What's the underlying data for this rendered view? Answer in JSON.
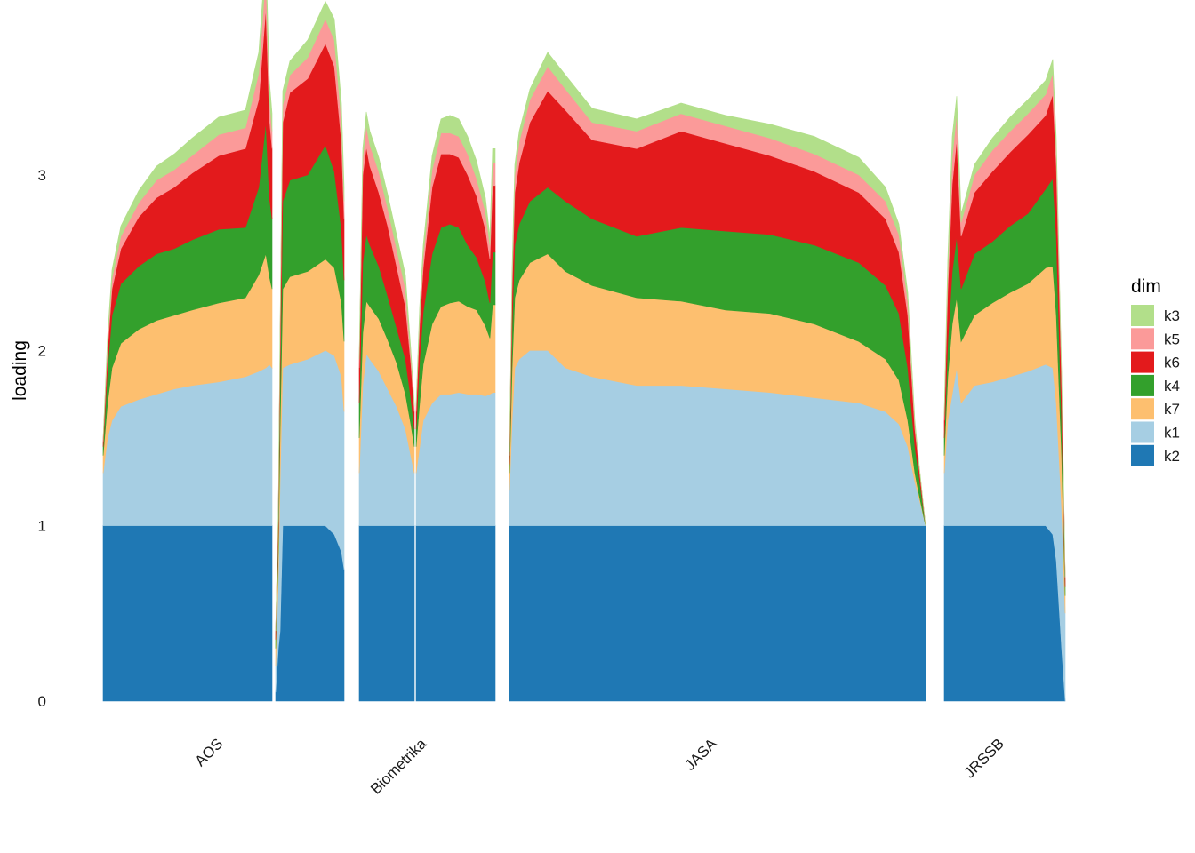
{
  "chart_data": {
    "type": "area",
    "stacked": true,
    "title": "",
    "xlabel": "",
    "ylabel": "loading",
    "ylim": [
      0,
      3.78
    ],
    "yticks": [
      0,
      1,
      2,
      3
    ],
    "grid": false,
    "legend": {
      "title": "dim",
      "placement": "right",
      "order": [
        "k3",
        "k5",
        "k6",
        "k4",
        "k7",
        "k1",
        "k2"
      ]
    },
    "colors": {
      "k2": "#1f78b4",
      "k1": "#a6cee3",
      "k7": "#fdbf6f",
      "k4": "#33a02c",
      "k6": "#e31a1c",
      "k5": "#fb9a99",
      "k3": "#b2df8a"
    },
    "series_order": [
      "k2",
      "k1",
      "k7",
      "k4",
      "k6",
      "k5",
      "k3"
    ],
    "x_domain": [
      0,
      1080
    ],
    "groups": [
      {
        "label": "AOS",
        "segments": [
          {
            "x": [
              0,
              5,
              10,
              20,
              40,
              60,
              80,
              100,
              130,
              160,
              175,
              183,
              187,
              190
            ],
            "series": {
              "k2": [
                1,
                1,
                1,
                1,
                1,
                1,
                1,
                1,
                1,
                1,
                1,
                1,
                1,
                1
              ],
              "k1": [
                0.3,
                0.5,
                0.6,
                0.68,
                0.72,
                0.75,
                0.78,
                0.8,
                0.82,
                0.85,
                0.88,
                0.9,
                0.92,
                0.9
              ],
              "k7": [
                0.1,
                0.2,
                0.3,
                0.36,
                0.4,
                0.42,
                0.42,
                0.43,
                0.45,
                0.45,
                0.55,
                0.65,
                0.5,
                0.45
              ],
              "k4": [
                0.05,
                0.2,
                0.3,
                0.34,
                0.36,
                0.38,
                0.38,
                0.4,
                0.42,
                0.4,
                0.5,
                0.75,
                0.45,
                0.4
              ],
              "k6": [
                0.03,
                0.1,
                0.15,
                0.2,
                0.28,
                0.32,
                0.35,
                0.38,
                0.42,
                0.45,
                0.5,
                0.65,
                0.45,
                0.4
              ],
              "k5": [
                0.01,
                0.05,
                0.06,
                0.07,
                0.08,
                0.1,
                0.1,
                0.1,
                0.12,
                0.12,
                0.15,
                0.2,
                0.12,
                0.1
              ],
              "k3": [
                0.01,
                0.03,
                0.05,
                0.06,
                0.07,
                0.08,
                0.09,
                0.1,
                0.1,
                0.1,
                0.12,
                0.12,
                0.1,
                0.1
              ]
            }
          },
          {
            "x": [
              194,
              197,
              199,
              202,
              210,
              230,
              250,
              260,
              268,
              271
            ],
            "series": {
              "k2": [
                0.05,
                0.3,
                0.4,
                1,
                1,
                1,
                1,
                0.95,
                0.85,
                0.75
              ],
              "k1": [
                0.15,
                0.4,
                0.85,
                0.9,
                0.92,
                0.95,
                1.0,
                1.02,
                1.0,
                0.9
              ],
              "k7": [
                0.1,
                0.15,
                0.3,
                0.45,
                0.5,
                0.5,
                0.52,
                0.5,
                0.42,
                0.4
              ],
              "k4": [
                0.05,
                0.1,
                0.3,
                0.5,
                0.55,
                0.55,
                0.65,
                0.55,
                0.42,
                0.35
              ],
              "k6": [
                0.05,
                0.1,
                0.2,
                0.45,
                0.5,
                0.55,
                0.58,
                0.6,
                0.5,
                0.35
              ],
              "k5": [
                0.0,
                0.02,
                0.05,
                0.1,
                0.1,
                0.12,
                0.14,
                0.15,
                0.12,
                0.1
              ],
              "k3": [
                0.0,
                0.02,
                0.05,
                0.08,
                0.08,
                0.1,
                0.1,
                0.12,
                0.1,
                0.08
              ]
            }
          }
        ]
      },
      {
        "label": "Biometrika",
        "segments": [
          {
            "x": [
              288,
              292,
              296,
              300,
              310,
              320,
              330,
              340,
              346,
              350
            ],
            "series": {
              "k2": [
                1,
                1,
                1,
                1,
                1,
                1,
                1,
                1,
                1,
                1
              ],
              "k1": [
                0.3,
                0.8,
                0.98,
                0.95,
                0.88,
                0.78,
                0.68,
                0.55,
                0.4,
                0.3
              ],
              "k7": [
                0.2,
                0.3,
                0.3,
                0.3,
                0.3,
                0.28,
                0.25,
                0.2,
                0.18,
                0.15
              ],
              "k4": [
                0.2,
                0.4,
                0.38,
                0.35,
                0.3,
                0.25,
                0.2,
                0.2,
                0.15,
                0.1
              ],
              "k6": [
                0.2,
                0.5,
                0.5,
                0.45,
                0.42,
                0.4,
                0.35,
                0.3,
                0.2,
                0.1
              ],
              "k5": [
                0.05,
                0.1,
                0.12,
                0.12,
                0.12,
                0.1,
                0.1,
                0.1,
                0.05,
                0.03
              ],
              "k3": [
                0.03,
                0.05,
                0.08,
                0.08,
                0.08,
                0.08,
                0.08,
                0.08,
                0.03,
                0.02
              ]
            }
          },
          {
            "x": [
              352,
              356,
              360,
              370,
              380,
              390,
              400,
              410,
              420,
              430,
              435,
              438,
              441
            ],
            "series": {
              "k2": [
                1,
                1,
                1,
                1,
                1,
                1,
                1,
                1,
                1,
                1,
                1,
                1,
                1
              ],
              "k1": [
                0.3,
                0.45,
                0.6,
                0.7,
                0.75,
                0.75,
                0.76,
                0.75,
                0.75,
                0.74,
                0.75,
                0.76,
                0.76
              ],
              "k7": [
                0.15,
                0.25,
                0.32,
                0.45,
                0.5,
                0.52,
                0.52,
                0.5,
                0.48,
                0.4,
                0.32,
                0.5,
                0.5
              ],
              "k4": [
                0.1,
                0.25,
                0.3,
                0.4,
                0.45,
                0.45,
                0.42,
                0.35,
                0.3,
                0.25,
                0.2,
                0.3,
                0.3
              ],
              "k6": [
                0.1,
                0.2,
                0.25,
                0.38,
                0.42,
                0.4,
                0.4,
                0.4,
                0.35,
                0.3,
                0.25,
                0.38,
                0.38
              ],
              "k5": [
                0.03,
                0.05,
                0.07,
                0.1,
                0.12,
                0.12,
                0.12,
                0.12,
                0.1,
                0.1,
                0.08,
                0.13,
                0.13
              ],
              "k3": [
                0.02,
                0.05,
                0.06,
                0.08,
                0.08,
                0.1,
                0.1,
                0.1,
                0.1,
                0.08,
                0.05,
                0.08,
                0.08
              ]
            }
          }
        ]
      },
      {
        "label": "JASA",
        "segments": [
          {
            "x": [
              457,
              460,
              463,
              468,
              480,
              500,
              520,
              550,
              600,
              650,
              700,
              750,
              800,
              850,
              880,
              895,
              905,
              913,
              918,
              925
            ],
            "series": {
              "k2": [
                1,
                1,
                1,
                1,
                1,
                1,
                1,
                1,
                1,
                1,
                1,
                1,
                1,
                1,
                1,
                1,
                1,
                1,
                1,
                1
              ],
              "k1": [
                0.2,
                0.6,
                0.9,
                0.95,
                1.0,
                1.0,
                0.9,
                0.85,
                0.8,
                0.8,
                0.78,
                0.76,
                0.73,
                0.7,
                0.65,
                0.58,
                0.45,
                0.25,
                0.15,
                0
              ],
              "k7": [
                0.1,
                0.3,
                0.4,
                0.45,
                0.5,
                0.55,
                0.55,
                0.52,
                0.5,
                0.48,
                0.45,
                0.45,
                0.42,
                0.35,
                0.3,
                0.25,
                0.15,
                0.05,
                0.02,
                0
              ],
              "k4": [
                0.05,
                0.25,
                0.3,
                0.32,
                0.35,
                0.38,
                0.4,
                0.38,
                0.35,
                0.42,
                0.45,
                0.45,
                0.45,
                0.45,
                0.42,
                0.38,
                0.3,
                0.15,
                0.1,
                0
              ],
              "k6": [
                0.05,
                0.2,
                0.3,
                0.35,
                0.45,
                0.55,
                0.52,
                0.45,
                0.5,
                0.55,
                0.5,
                0.45,
                0.42,
                0.4,
                0.38,
                0.35,
                0.3,
                0.1,
                0.05,
                0
              ],
              "k5": [
                0.02,
                0.08,
                0.1,
                0.12,
                0.13,
                0.14,
                0.12,
                0.1,
                0.1,
                0.1,
                0.1,
                0.1,
                0.1,
                0.1,
                0.1,
                0.1,
                0.08,
                0.03,
                0.01,
                0
              ],
              "k3": [
                0.02,
                0.05,
                0.06,
                0.06,
                0.06,
                0.08,
                0.08,
                0.08,
                0.07,
                0.06,
                0.06,
                0.08,
                0.1,
                0.1,
                0.08,
                0.06,
                0.05,
                0.02,
                0.01,
                0
              ]
            }
          }
        ]
      },
      {
        "label": "JRSSB",
        "segments": [
          {
            "x": [
              946,
              950,
              955,
              960,
              965,
              980,
              1000,
              1020,
              1040,
              1060,
              1068,
              1072,
              1078,
              1082
            ],
            "series": {
              "k2": [
                1,
                1,
                1,
                1,
                1,
                1,
                1,
                1,
                1,
                1,
                0.95,
                0.8,
                0.3,
                0
              ],
              "k1": [
                0.3,
                0.6,
                0.75,
                0.9,
                0.7,
                0.8,
                0.82,
                0.85,
                0.88,
                0.92,
                0.95,
                0.9,
                0.8,
                0.5
              ],
              "k7": [
                0.1,
                0.25,
                0.4,
                0.4,
                0.35,
                0.4,
                0.45,
                0.48,
                0.5,
                0.55,
                0.58,
                0.5,
                0.3,
                0.1
              ],
              "k4": [
                0.1,
                0.2,
                0.3,
                0.35,
                0.3,
                0.35,
                0.35,
                0.38,
                0.4,
                0.45,
                0.5,
                0.45,
                0.2,
                0.05
              ],
              "k6": [
                0.1,
                0.3,
                0.5,
                0.55,
                0.3,
                0.35,
                0.4,
                0.42,
                0.45,
                0.42,
                0.48,
                0.4,
                0.2,
                0.05
              ],
              "k5": [
                0.03,
                0.1,
                0.15,
                0.15,
                0.08,
                0.1,
                0.12,
                0.12,
                0.12,
                0.12,
                0.12,
                0.1,
                0.05,
                0.01
              ],
              "k3": [
                0.03,
                0.08,
                0.12,
                0.1,
                0.05,
                0.06,
                0.07,
                0.08,
                0.08,
                0.08,
                0.08,
                0.06,
                0.03,
                0.01
              ]
            }
          }
        ]
      }
    ]
  }
}
